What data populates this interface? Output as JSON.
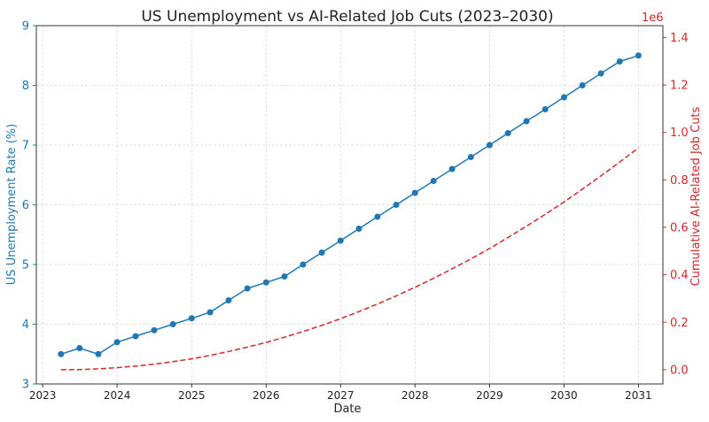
{
  "chart_data": {
    "type": "line",
    "title": "US Unemployment vs AI-Related Job Cuts (2023–2030)",
    "xlabel": "Date",
    "xlim": [
      "2022-12-01",
      "2031-05-01"
    ],
    "x_ticks": [
      "2023",
      "2024",
      "2025",
      "2026",
      "2027",
      "2028",
      "2029",
      "2030",
      "2031"
    ],
    "grid": true,
    "axes": {
      "left": {
        "label": "US Unemployment Rate (%)",
        "ylim": [
          3,
          9
        ],
        "ticks": [
          "3",
          "4",
          "5",
          "6",
          "7",
          "8",
          "9"
        ],
        "color": "#1f77b4"
      },
      "right": {
        "label": "Cumulative AI-Related Job Cuts",
        "ylim": [
          -60000,
          1450000
        ],
        "ticks": [
          "0.0",
          "0.2",
          "0.4",
          "0.6",
          "0.8",
          "1.0",
          "1.2",
          "1.4"
        ],
        "tick_values": [
          0,
          200000,
          400000,
          600000,
          800000,
          1000000,
          1200000,
          1400000
        ],
        "offset_text": "1e6",
        "color": "#d62728"
      }
    },
    "series": [
      {
        "axis": "left",
        "style": "solid-line-with-markers",
        "color": "#1f77b4",
        "points": [
          [
            "2023-04-01",
            3.5
          ],
          [
            "2023-07-01",
            3.6
          ],
          [
            "2023-10-01",
            3.5
          ],
          [
            "2024-01-01",
            3.7
          ],
          [
            "2024-04-01",
            3.8
          ],
          [
            "2024-07-01",
            3.9
          ],
          [
            "2024-10-01",
            4.0
          ],
          [
            "2025-01-01",
            4.1
          ],
          [
            "2025-04-01",
            4.2
          ],
          [
            "2025-07-01",
            4.4
          ],
          [
            "2025-10-01",
            4.6
          ],
          [
            "2026-01-01",
            4.7
          ],
          [
            "2026-04-01",
            4.8
          ],
          [
            "2026-07-01",
            5.0
          ],
          [
            "2026-10-01",
            5.2
          ],
          [
            "2027-01-01",
            5.4
          ],
          [
            "2027-04-01",
            5.6
          ],
          [
            "2027-07-01",
            5.8
          ],
          [
            "2027-10-01",
            6.0
          ],
          [
            "2028-01-01",
            6.2
          ],
          [
            "2028-04-01",
            6.4
          ],
          [
            "2028-07-01",
            6.6
          ],
          [
            "2028-10-01",
            6.8
          ],
          [
            "2029-01-01",
            7.0
          ],
          [
            "2029-04-01",
            7.2
          ],
          [
            "2029-07-01",
            7.4
          ],
          [
            "2029-10-01",
            7.6
          ],
          [
            "2030-01-01",
            7.8
          ],
          [
            "2030-04-01",
            8.0
          ],
          [
            "2030-07-01",
            8.2
          ],
          [
            "2030-10-01",
            8.4
          ],
          [
            "2031-01-01",
            8.5
          ]
        ]
      },
      {
        "axis": "right",
        "style": "dashed-line",
        "color": "#d62728",
        "points": [
          [
            "2023-04-01",
            0
          ],
          [
            "2023-07-01",
            900
          ],
          [
            "2023-10-01",
            3800
          ],
          [
            "2024-01-01",
            8500
          ],
          [
            "2024-04-01",
            15000
          ],
          [
            "2024-07-01",
            23500
          ],
          [
            "2024-10-01",
            34000
          ],
          [
            "2025-01-01",
            46000
          ],
          [
            "2025-04-01",
            60500
          ],
          [
            "2025-07-01",
            77000
          ],
          [
            "2025-10-01",
            95000
          ],
          [
            "2026-01-01",
            115000
          ],
          [
            "2026-04-01",
            137000
          ],
          [
            "2026-07-01",
            161000
          ],
          [
            "2026-10-01",
            187000
          ],
          [
            "2027-01-01",
            215000
          ],
          [
            "2027-04-01",
            245000
          ],
          [
            "2027-07-01",
            277000
          ],
          [
            "2027-10-01",
            311000
          ],
          [
            "2028-01-01",
            347000
          ],
          [
            "2028-04-01",
            385000
          ],
          [
            "2028-07-01",
            425000
          ],
          [
            "2028-10-01",
            467000
          ],
          [
            "2029-01-01",
            511000
          ],
          [
            "2029-04-01",
            557000
          ],
          [
            "2029-07-01",
            605000
          ],
          [
            "2029-10-01",
            655000
          ],
          [
            "2030-01-01",
            707000
          ],
          [
            "2030-04-01",
            761000
          ],
          [
            "2030-07-01",
            817000
          ],
          [
            "2030-10-01",
            875000
          ],
          [
            "2031-01-01",
            935000
          ]
        ]
      }
    ]
  }
}
